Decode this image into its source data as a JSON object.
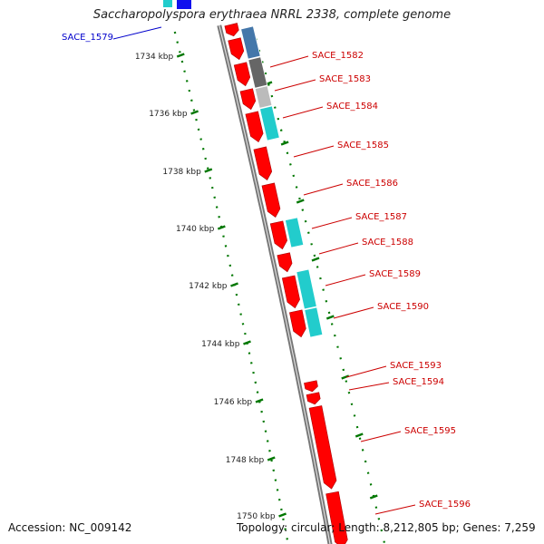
{
  "title": "Saccharopolyspora erythraea NRRL 2338, complete genome",
  "footer": {
    "accession": "Accession: NC_009142",
    "topology": "Topology: circular; Length: 8,212,805 bp; Genes: 7,259"
  },
  "colors": {
    "forward_gene": "#ff0000",
    "highlight_label": "#0000cc",
    "gene_label": "#cc0000",
    "cyan_feature": "#22cccc",
    "blue_feature": "#4477aa",
    "dark_grey_feature": "#666666",
    "light_grey_feature": "#bbbbbb",
    "backbone": "#777777",
    "tick_marks": "#007700"
  },
  "kbp_ticks": [
    "1734 kbp",
    "1736 kbp",
    "1738 kbp",
    "1740 kbp",
    "1742 kbp",
    "1744 kbp",
    "1746 kbp",
    "1748 kbp",
    "1750 kbp"
  ],
  "labels": [
    {
      "text": "SACE_1579",
      "highlight": true
    },
    {
      "text": "SACE_1582"
    },
    {
      "text": "SACE_1583"
    },
    {
      "text": "SACE_1584"
    },
    {
      "text": "SACE_1585"
    },
    {
      "text": "SACE_1586"
    },
    {
      "text": "SACE_1587"
    },
    {
      "text": "SACE_1588"
    },
    {
      "text": "SACE_1589"
    },
    {
      "text": "SACE_1590"
    },
    {
      "text": "SACE_1593"
    },
    {
      "text": "SACE_1594"
    },
    {
      "text": "SACE_1595"
    },
    {
      "text": "SACE_1596"
    }
  ]
}
